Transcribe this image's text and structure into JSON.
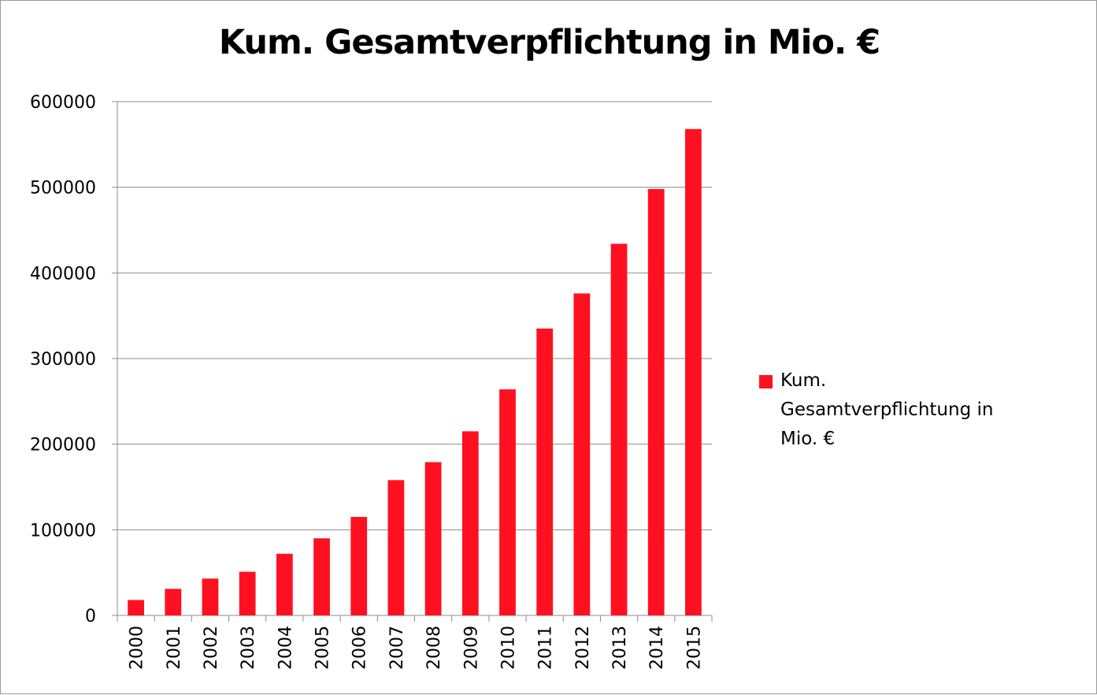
{
  "chart_data": {
    "type": "bar",
    "title": "Kum. Gesamtverpflichtung in Mio. €",
    "xlabel": "",
    "ylabel": "",
    "categories": [
      "2000",
      "2001",
      "2002",
      "2003",
      "2004",
      "2005",
      "2006",
      "2007",
      "2008",
      "2009",
      "2010",
      "2011",
      "2012",
      "2013",
      "2014",
      "2015"
    ],
    "series": [
      {
        "name": "Kum. Gesamtverpflichtung in Mio. €",
        "color": "#ff1020",
        "values": [
          18000,
          31000,
          43000,
          51000,
          72000,
          90000,
          115000,
          158000,
          179000,
          215000,
          264000,
          335000,
          376000,
          434000,
          498000,
          568000
        ]
      }
    ],
    "ylim": [
      0,
      600000
    ],
    "yticks": [
      0,
      100000,
      200000,
      300000,
      400000,
      500000,
      600000
    ],
    "grid": true,
    "legend_position": "right",
    "x_tick_rotation": "vertical"
  }
}
